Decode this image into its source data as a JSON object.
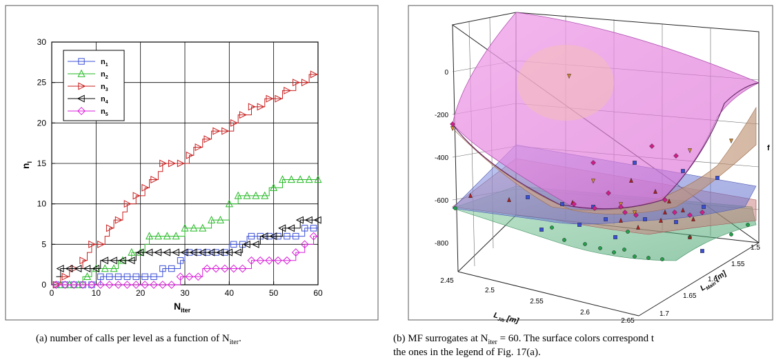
{
  "chart_data": [
    {
      "type": "line",
      "xlabel_main": "N",
      "xlabel_sub": "iter",
      "ylabel_main": "n",
      "ylabel_sub": "l",
      "xlim": [
        0,
        60
      ],
      "ylim": [
        0,
        30
      ],
      "xticks": [
        "0",
        "10",
        "20",
        "30",
        "40",
        "50",
        "60"
      ],
      "yticks": [
        "0",
        "5",
        "10",
        "15",
        "20",
        "25",
        "30"
      ],
      "grid": true,
      "legend_position": "top-left",
      "x": [
        1,
        2,
        3,
        4,
        5,
        6,
        7,
        8,
        9,
        10,
        11,
        12,
        13,
        14,
        15,
        16,
        17,
        18,
        19,
        20,
        21,
        22,
        23,
        24,
        25,
        26,
        27,
        28,
        29,
        30,
        31,
        32,
        33,
        34,
        35,
        36,
        37,
        38,
        39,
        40,
        41,
        42,
        43,
        44,
        45,
        46,
        47,
        48,
        49,
        50,
        51,
        52,
        53,
        54,
        55,
        56,
        57,
        58,
        59,
        60
      ],
      "series": [
        {
          "name": "n",
          "sub": "1",
          "color": "#3b4fd6",
          "marker": "square",
          "values": [
            0,
            0,
            0,
            0,
            0,
            0,
            0,
            0,
            0,
            0,
            1,
            1,
            1,
            1,
            1,
            1,
            1,
            1,
            1,
            1,
            1,
            1,
            1,
            1,
            2,
            2,
            2,
            2,
            3,
            4,
            4,
            4,
            4,
            4,
            4,
            4,
            4,
            4,
            4,
            5,
            5,
            5,
            5,
            6,
            6,
            6,
            6,
            6,
            6,
            6,
            6,
            6,
            6,
            6,
            6,
            6,
            7,
            7,
            7,
            7
          ]
        },
        {
          "name": "n",
          "sub": "2",
          "color": "#22b922",
          "marker": "triangle-up",
          "values": [
            0,
            0,
            0,
            0,
            0,
            0,
            1,
            1,
            2,
            2,
            2,
            2,
            2,
            2,
            3,
            3,
            3,
            4,
            4,
            4,
            5,
            6,
            6,
            6,
            6,
            6,
            6,
            6,
            6,
            7,
            7,
            7,
            7,
            7,
            7,
            8,
            8,
            8,
            8,
            10,
            10,
            11,
            11,
            11,
            11,
            11,
            11,
            11,
            12,
            12,
            12,
            13,
            13,
            13,
            13,
            13,
            13,
            13,
            13,
            13
          ]
        },
        {
          "name": "n",
          "sub": "3",
          "color": "#c81e1e",
          "marker": "triangle-right",
          "values": [
            0,
            1,
            1,
            2,
            2,
            2,
            3,
            4,
            5,
            5,
            5,
            6,
            7,
            8,
            8,
            9,
            10,
            10,
            11,
            11,
            12,
            13,
            13,
            14,
            15,
            15,
            15,
            15,
            15,
            15,
            16,
            17,
            17,
            18,
            18,
            19,
            19,
            19,
            19,
            19,
            20,
            21,
            21,
            21,
            22,
            22,
            22,
            23,
            23,
            23,
            23,
            24,
            24,
            24,
            25,
            25,
            25,
            26,
            26,
            26
          ]
        },
        {
          "name": "n",
          "sub": "4",
          "color": "#000000",
          "marker": "triangle-left",
          "values": [
            1,
            2,
            2,
            2,
            2,
            2,
            2,
            2,
            2,
            2,
            3,
            3,
            3,
            3,
            3,
            3,
            3,
            3,
            4,
            4,
            4,
            4,
            4,
            4,
            4,
            4,
            4,
            4,
            4,
            4,
            4,
            4,
            4,
            4,
            4,
            4,
            4,
            4,
            4,
            4,
            4,
            4,
            5,
            5,
            5,
            5,
            6,
            6,
            6,
            6,
            6,
            7,
            7,
            7,
            7,
            8,
            8,
            8,
            8,
            8
          ]
        },
        {
          "name": "n",
          "sub": "5",
          "color": "#d81ed8",
          "marker": "diamond",
          "values": [
            0,
            0,
            0,
            0,
            0,
            0,
            0,
            0,
            0,
            0,
            0,
            0,
            0,
            0,
            0,
            0,
            0,
            0,
            0,
            0,
            0,
            0,
            0,
            0,
            0,
            0,
            0,
            0,
            1,
            1,
            1,
            1,
            1,
            2,
            2,
            2,
            2,
            2,
            2,
            2,
            2,
            2,
            2,
            2,
            3,
            3,
            3,
            3,
            3,
            3,
            3,
            3,
            3,
            3,
            4,
            4,
            5,
            5,
            6,
            6
          ]
        }
      ]
    },
    {
      "type": "surface-3d",
      "zlabel": "f",
      "xlabel_main": "L",
      "xlabel_sub": "Jib",
      "xlabel_unit": "[m]",
      "ylabel_main": "L",
      "ylabel_sub": "Main",
      "ylabel_unit": "[m]",
      "zticks": [
        "0",
        "-200",
        "-400",
        "-600",
        "-800"
      ],
      "xticks": [
        "2.45",
        "2.5",
        "2.55",
        "2.6",
        "2.65"
      ],
      "yticks": [
        "1.5",
        "1.55",
        "1.6",
        "1.65",
        "1.7"
      ],
      "surfaces": [
        {
          "name": "n1",
          "color": "#6673d6"
        },
        {
          "name": "n2",
          "color": "#4fb07c"
        },
        {
          "name": "n3",
          "color": "#d88a8a"
        },
        {
          "name": "n4",
          "color": "#c8a37a"
        },
        {
          "name": "n5",
          "color": "#e27fd9"
        }
      ]
    }
  ],
  "captions": {
    "a_prefix": "(a)  number of calls per level as a function of N",
    "a_sub": "iter",
    "a_suffix": ".",
    "b_line1_prefix": "(b)  MF surrogates at N",
    "b_line1_sub": "iter",
    "b_line1_suffix": " = 60. The surface colors correspond t",
    "b_line2": "the ones in the legend of Fig. 17(a)."
  }
}
